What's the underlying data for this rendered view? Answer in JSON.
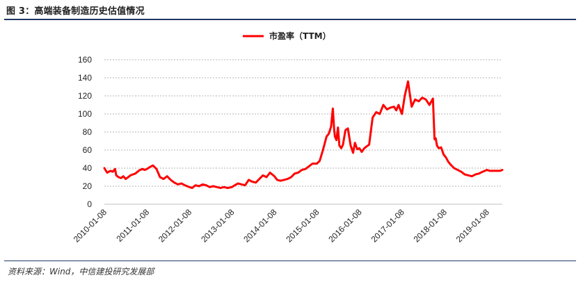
{
  "figure": {
    "title": "图 3：高端装备制造历史估值情况",
    "source": "资料来源：Wind，中信建投研究发展部"
  },
  "colors": {
    "series": "#ff0000",
    "grid": "#9a9a9a",
    "rule": "#1f3864"
  },
  "chart_data": {
    "type": "line",
    "title": "",
    "xlabel": "",
    "ylabel": "",
    "ylim": [
      0,
      160
    ],
    "yticks": [
      0,
      20,
      40,
      60,
      80,
      100,
      120,
      140,
      160
    ],
    "xlim": [
      "2010-01-08",
      "2019-05-20"
    ],
    "xticks": [
      "2010-01-08",
      "2011-01-08",
      "2012-01-08",
      "2013-01-08",
      "2014-01-08",
      "2015-01-08",
      "2016-01-08",
      "2017-01-08",
      "2018-01-08",
      "2019-01-08"
    ],
    "grid": "horizontal",
    "legend": "top-center",
    "series": [
      {
        "name": "市盈率（TTM）",
        "x": [
          "2010-01-08",
          "2010-02-01",
          "2010-03-01",
          "2010-03-20",
          "2010-04-10",
          "2010-04-20",
          "2010-05-10",
          "2010-06-01",
          "2010-06-20",
          "2010-07-10",
          "2010-08-01",
          "2010-08-20",
          "2010-09-10",
          "2010-10-01",
          "2010-10-20",
          "2010-11-10",
          "2010-12-01",
          "2010-12-20",
          "2011-01-08",
          "2011-02-01",
          "2011-03-01",
          "2011-04-01",
          "2011-05-01",
          "2011-06-01",
          "2011-07-01",
          "2011-08-01",
          "2011-09-01",
          "2011-10-01",
          "2011-11-01",
          "2011-12-01",
          "2012-01-08",
          "2012-02-01",
          "2012-03-01",
          "2012-04-01",
          "2012-05-01",
          "2012-06-01",
          "2012-07-01",
          "2012-08-01",
          "2012-09-01",
          "2012-10-01",
          "2012-11-01",
          "2012-12-01",
          "2013-01-08",
          "2013-02-01",
          "2013-03-01",
          "2013-04-01",
          "2013-05-01",
          "2013-06-01",
          "2013-07-01",
          "2013-08-01",
          "2013-09-01",
          "2013-10-01",
          "2013-11-01",
          "2013-12-01",
          "2014-01-08",
          "2014-02-01",
          "2014-03-01",
          "2014-04-01",
          "2014-05-01",
          "2014-06-01",
          "2014-07-01",
          "2014-08-01",
          "2014-09-01",
          "2014-10-01",
          "2014-11-01",
          "2014-12-01",
          "2015-01-08",
          "2015-02-01",
          "2015-03-01",
          "2015-04-01",
          "2015-04-20",
          "2015-05-10",
          "2015-05-25",
          "2015-06-05",
          "2015-06-12",
          "2015-06-25",
          "2015-07-08",
          "2015-07-20",
          "2015-08-05",
          "2015-08-20",
          "2015-09-10",
          "2015-10-01",
          "2015-10-25",
          "2015-11-15",
          "2015-12-01",
          "2015-12-20",
          "2016-01-08",
          "2016-01-28",
          "2016-02-20",
          "2016-03-10",
          "2016-04-01",
          "2016-05-01",
          "2016-06-01",
          "2016-07-01",
          "2016-08-01",
          "2016-09-01",
          "2016-10-01",
          "2016-11-01",
          "2016-11-20",
          "2016-12-10",
          "2017-01-01",
          "2017-01-08",
          "2017-02-01",
          "2017-03-01",
          "2017-04-01",
          "2017-05-01",
          "2017-06-01",
          "2017-07-01",
          "2017-08-01",
          "2017-09-01",
          "2017-10-01",
          "2017-10-15",
          "2017-10-25",
          "2017-11-05",
          "2017-11-20",
          "2017-12-10",
          "2018-01-01",
          "2018-01-20",
          "2018-02-10",
          "2018-03-01",
          "2018-04-01",
          "2018-05-01",
          "2018-06-01",
          "2018-07-01",
          "2018-08-01",
          "2018-09-01",
          "2018-10-01",
          "2018-11-01",
          "2018-12-01",
          "2019-01-08",
          "2019-02-01",
          "2019-03-01",
          "2019-04-01",
          "2019-05-01",
          "2019-05-20"
        ],
        "values": [
          40,
          35,
          37,
          36,
          39,
          32,
          30,
          29,
          31,
          28,
          30,
          32,
          33,
          34,
          36,
          38,
          39,
          38,
          39,
          41,
          43,
          39,
          30,
          28,
          31,
          27,
          24,
          22,
          23,
          21,
          19,
          18,
          21,
          20,
          22,
          21,
          19,
          20,
          19,
          18,
          19,
          18,
          19,
          21,
          23,
          22,
          21,
          27,
          25,
          24,
          28,
          32,
          30,
          35,
          31,
          27,
          26,
          27,
          28,
          30,
          34,
          35,
          38,
          39,
          42,
          45,
          45,
          48,
          60,
          75,
          78,
          86,
          106,
          83,
          75,
          71,
          85,
          65,
          62,
          66,
          82,
          84,
          65,
          57,
          68,
          61,
          62,
          58,
          62,
          64,
          66,
          96,
          102,
          100,
          110,
          105,
          107,
          108,
          104,
          110,
          102,
          100,
          120,
          136,
          108,
          116,
          114,
          118,
          116,
          110,
          117,
          72,
          73,
          65,
          62,
          63,
          55,
          52,
          47,
          44,
          40,
          38,
          36,
          33,
          32,
          31,
          33,
          34,
          36,
          38,
          37,
          37,
          37,
          37,
          38
        ]
      }
    ]
  }
}
